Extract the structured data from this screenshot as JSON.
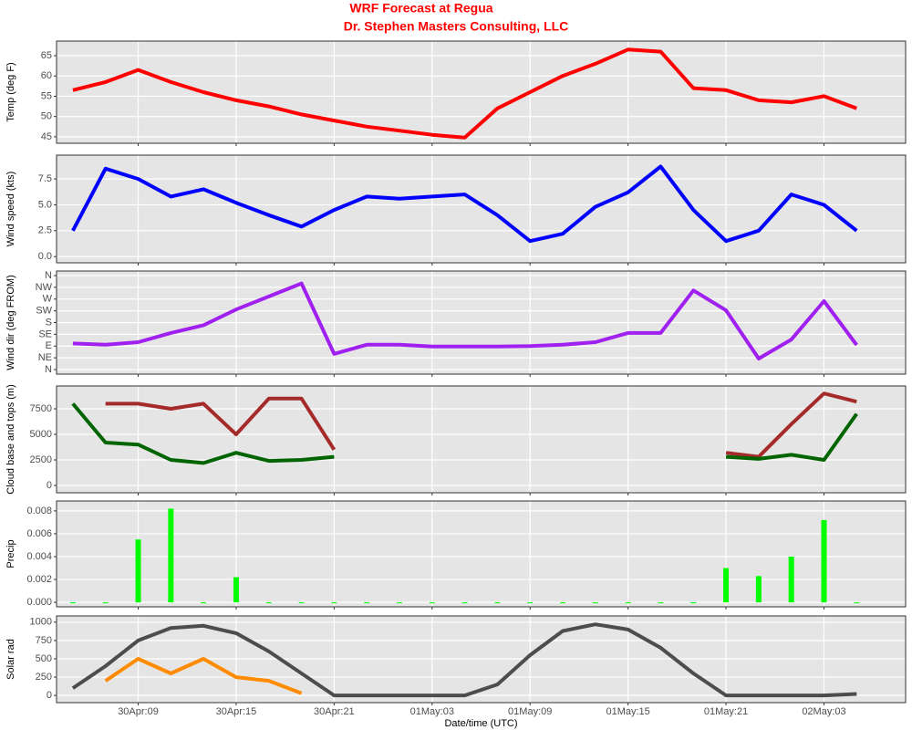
{
  "chart_data": [
    {
      "type": "line",
      "title": "WRF Forecast at Regua",
      "subtitle": "Dr. Stephen Masters Consulting, LLC",
      "y_label": "Temp (deg F)",
      "x": [
        "30Apr:05",
        "30Apr:07",
        "30Apr:09",
        "30Apr:11",
        "30Apr:13",
        "30Apr:15",
        "30Apr:17",
        "30Apr:19",
        "30Apr:21",
        "30Apr:23",
        "01May:01",
        "01May:03",
        "01May:05",
        "01May:07",
        "01May:09",
        "01May:11",
        "01May:13",
        "01May:15",
        "01May:17",
        "01May:19",
        "01May:21",
        "01May:23",
        "02May:01",
        "02May:03",
        "02May:05"
      ],
      "xlim": [
        "30Apr:04",
        "02May:08"
      ],
      "xticks": [
        "30Apr:09",
        "30Apr:15",
        "30Apr:21",
        "01May:03",
        "01May:09",
        "01May:15",
        "01May:21",
        "02May:03"
      ],
      "ylim": [
        43.4,
        68.6
      ],
      "yticks": [
        45,
        50,
        55,
        60,
        65
      ],
      "grid": true,
      "series": [
        {
          "color": "#ff0000",
          "values": [
            56.5,
            58.5,
            61.5,
            58.5,
            56,
            54,
            52.5,
            50.5,
            49,
            47.5,
            46.5,
            45.5,
            44.8,
            52,
            56,
            60,
            63,
            66.5,
            66,
            57,
            56.5,
            54,
            53.5,
            55,
            52
          ]
        }
      ]
    },
    {
      "type": "line",
      "y_label": "Wind speed (kts)",
      "x": [
        "30Apr:05",
        "30Apr:07",
        "30Apr:09",
        "30Apr:11",
        "30Apr:13",
        "30Apr:15",
        "30Apr:17",
        "30Apr:19",
        "30Apr:21",
        "30Apr:23",
        "01May:01",
        "01May:03",
        "01May:05",
        "01May:07",
        "01May:09",
        "01May:11",
        "01May:13",
        "01May:15",
        "01May:17",
        "01May:19",
        "01May:21",
        "01May:23",
        "02May:01",
        "02May:03",
        "02May:05"
      ],
      "xlim": [
        "30Apr:04",
        "02May:08"
      ],
      "xticks": [
        "30Apr:09",
        "30Apr:15",
        "30Apr:21",
        "01May:03",
        "01May:09",
        "01May:15",
        "01May:21",
        "02May:03"
      ],
      "ylim": [
        -0.6,
        9.8
      ],
      "yticks": [
        {
          "value": 0,
          "label": "0.0"
        },
        {
          "value": 2.5,
          "label": "2.5"
        },
        {
          "value": 5,
          "label": "5.0"
        },
        {
          "value": 7.5,
          "label": "7.5"
        }
      ],
      "grid": true,
      "series": [
        {
          "color": "#0000ff",
          "values": [
            2.5,
            8.5,
            7.5,
            5.8,
            6.5,
            5.2,
            4,
            2.9,
            4.5,
            5.8,
            5.6,
            5.8,
            6,
            4,
            1.5,
            2.2,
            4.8,
            6.2,
            8.7,
            4.5,
            1.5,
            2.5,
            6,
            5,
            2.5
          ]
        }
      ]
    },
    {
      "type": "line",
      "y_label": "Wind dir (deg FROM)",
      "x": [
        "30Apr:05",
        "30Apr:07",
        "30Apr:09",
        "30Apr:11",
        "30Apr:13",
        "30Apr:15",
        "30Apr:17",
        "30Apr:19",
        "30Apr:21",
        "30Apr:23",
        "01May:01",
        "01May:03",
        "01May:05",
        "01May:07",
        "01May:09",
        "01May:11",
        "01May:13",
        "01May:15",
        "01May:17",
        "01May:19",
        "01May:21",
        "01May:23",
        "02May:01",
        "02May:03",
        "02May:05"
      ],
      "xlim": [
        "30Apr:04",
        "02May:08"
      ],
      "xticks": [
        "30Apr:09",
        "30Apr:15",
        "30Apr:21",
        "01May:03",
        "01May:09",
        "01May:15",
        "01May:21",
        "02May:03"
      ],
      "ylim": [
        -17.5,
        377.5
      ],
      "yticks": [
        {
          "value": 0,
          "label": "N"
        },
        {
          "value": 45,
          "label": "NE"
        },
        {
          "value": 90,
          "label": "E"
        },
        {
          "value": 135,
          "label": "SE"
        },
        {
          "value": 180,
          "label": "S"
        },
        {
          "value": 225,
          "label": "SW"
        },
        {
          "value": 270,
          "label": "W"
        },
        {
          "value": 315,
          "label": "NW"
        },
        {
          "value": 360,
          "label": "N"
        }
      ],
      "grid": true,
      "series": [
        {
          "color": "#a020f0",
          "values": [
            100,
            95,
            105,
            140,
            170,
            230,
            280,
            330,
            60,
            95,
            95,
            88,
            88,
            88,
            90,
            95,
            105,
            140,
            140,
            303,
            227,
            42,
            115,
            262,
            94
          ]
        }
      ]
    },
    {
      "type": "line",
      "y_label": "Cloud base and tops (m)",
      "x": [
        "30Apr:05",
        "30Apr:07",
        "30Apr:09",
        "30Apr:11",
        "30Apr:13",
        "30Apr:15",
        "30Apr:17",
        "30Apr:19",
        "30Apr:21",
        "30Apr:23",
        "01May:01",
        "01May:03",
        "01May:05",
        "01May:07",
        "01May:09",
        "01May:11",
        "01May:13",
        "01May:15",
        "01May:17",
        "01May:19",
        "01May:21",
        "01May:23",
        "02May:01",
        "02May:03",
        "02May:05"
      ],
      "xlim": [
        "30Apr:04",
        "02May:08"
      ],
      "xticks": [
        "30Apr:09",
        "30Apr:15",
        "30Apr:21",
        "01May:03",
        "01May:09",
        "01May:15",
        "01May:21",
        "02May:03"
      ],
      "ylim": [
        -714,
        9732
      ],
      "yticks": [
        0,
        2500,
        5000,
        7500
      ],
      "grid": true,
      "series": [
        {
          "color": "#a52a2a",
          "values": [
            null,
            8000,
            8000,
            7500,
            8000,
            5000,
            8500,
            8500,
            3500,
            null,
            null,
            null,
            null,
            null,
            null,
            null,
            null,
            null,
            null,
            null,
            3200,
            2800,
            6000,
            9000,
            8200
          ]
        },
        {
          "color": "#006400",
          "values": [
            8000,
            4200,
            4000,
            2500,
            2200,
            3200,
            2400,
            2500,
            2800,
            null,
            null,
            null,
            null,
            null,
            null,
            null,
            null,
            null,
            null,
            null,
            2800,
            2600,
            3000,
            2500,
            7000
          ]
        }
      ]
    },
    {
      "type": "bar",
      "y_label": "Precip",
      "x": [
        "30Apr:05",
        "30Apr:07",
        "30Apr:09",
        "30Apr:11",
        "30Apr:13",
        "30Apr:15",
        "30Apr:17",
        "30Apr:19",
        "30Apr:21",
        "30Apr:23",
        "01May:01",
        "01May:03",
        "01May:05",
        "01May:07",
        "01May:09",
        "01May:11",
        "01May:13",
        "01May:15",
        "01May:17",
        "01May:19",
        "01May:21",
        "01May:23",
        "02May:01",
        "02May:03",
        "02May:05"
      ],
      "xlim": [
        "30Apr:04",
        "02May:08"
      ],
      "xticks": [
        "30Apr:09",
        "30Apr:15",
        "30Apr:21",
        "01May:03",
        "01May:09",
        "01May:15",
        "01May:21",
        "02May:03"
      ],
      "ylim": [
        -0.00039,
        0.00887
      ],
      "yticks": [
        {
          "value": 0,
          "label": "0.000"
        },
        {
          "value": 0.002,
          "label": "0.002"
        },
        {
          "value": 0.004,
          "label": "0.004"
        },
        {
          "value": 0.006,
          "label": "0.006"
        },
        {
          "value": 0.008,
          "label": "0.008"
        }
      ],
      "grid": true,
      "series": [
        {
          "color": "#00ff00",
          "values": [
            0,
            0,
            0.0055,
            0.0082,
            0,
            0.0022,
            0,
            0,
            0,
            0,
            0,
            0,
            0,
            0,
            0,
            0,
            0,
            0,
            0,
            0,
            0.003,
            0.0023,
            0.004,
            0.0072,
            0
          ]
        }
      ]
    },
    {
      "type": "line",
      "y_label": "Solar rad",
      "x_label": "Date/time (UTC)",
      "x": [
        "30Apr:05",
        "30Apr:07",
        "30Apr:09",
        "30Apr:11",
        "30Apr:13",
        "30Apr:15",
        "30Apr:17",
        "30Apr:19",
        "30Apr:21",
        "30Apr:23",
        "01May:01",
        "01May:03",
        "01May:05",
        "01May:07",
        "01May:09",
        "01May:11",
        "01May:13",
        "01May:15",
        "01May:17",
        "01May:19",
        "01May:21",
        "01May:23",
        "02May:01",
        "02May:03",
        "02May:05"
      ],
      "xlim": [
        "30Apr:04",
        "02May:08"
      ],
      "xticks": [
        "30Apr:09",
        "30Apr:15",
        "30Apr:21",
        "01May:03",
        "01May:09",
        "01May:15",
        "01May:21",
        "02May:03"
      ],
      "ylim": [
        -98,
        1085
      ],
      "yticks": [
        0,
        250,
        500,
        750,
        1000
      ],
      "grid": true,
      "series": [
        {
          "color": "#4d4d4d",
          "values": [
            100,
            400,
            750,
            920,
            950,
            850,
            600,
            300,
            0,
            0,
            0,
            0,
            0,
            150,
            550,
            880,
            970,
            900,
            650,
            300,
            0,
            0,
            0,
            0,
            20
          ]
        },
        {
          "color": "#ff8c00",
          "values": [
            null,
            200,
            500,
            300,
            500,
            250,
            200,
            30,
            null,
            null,
            null,
            null,
            null,
            null,
            null,
            null,
            null,
            null,
            null,
            null,
            null,
            null,
            null,
            null,
            null
          ]
        }
      ]
    }
  ]
}
